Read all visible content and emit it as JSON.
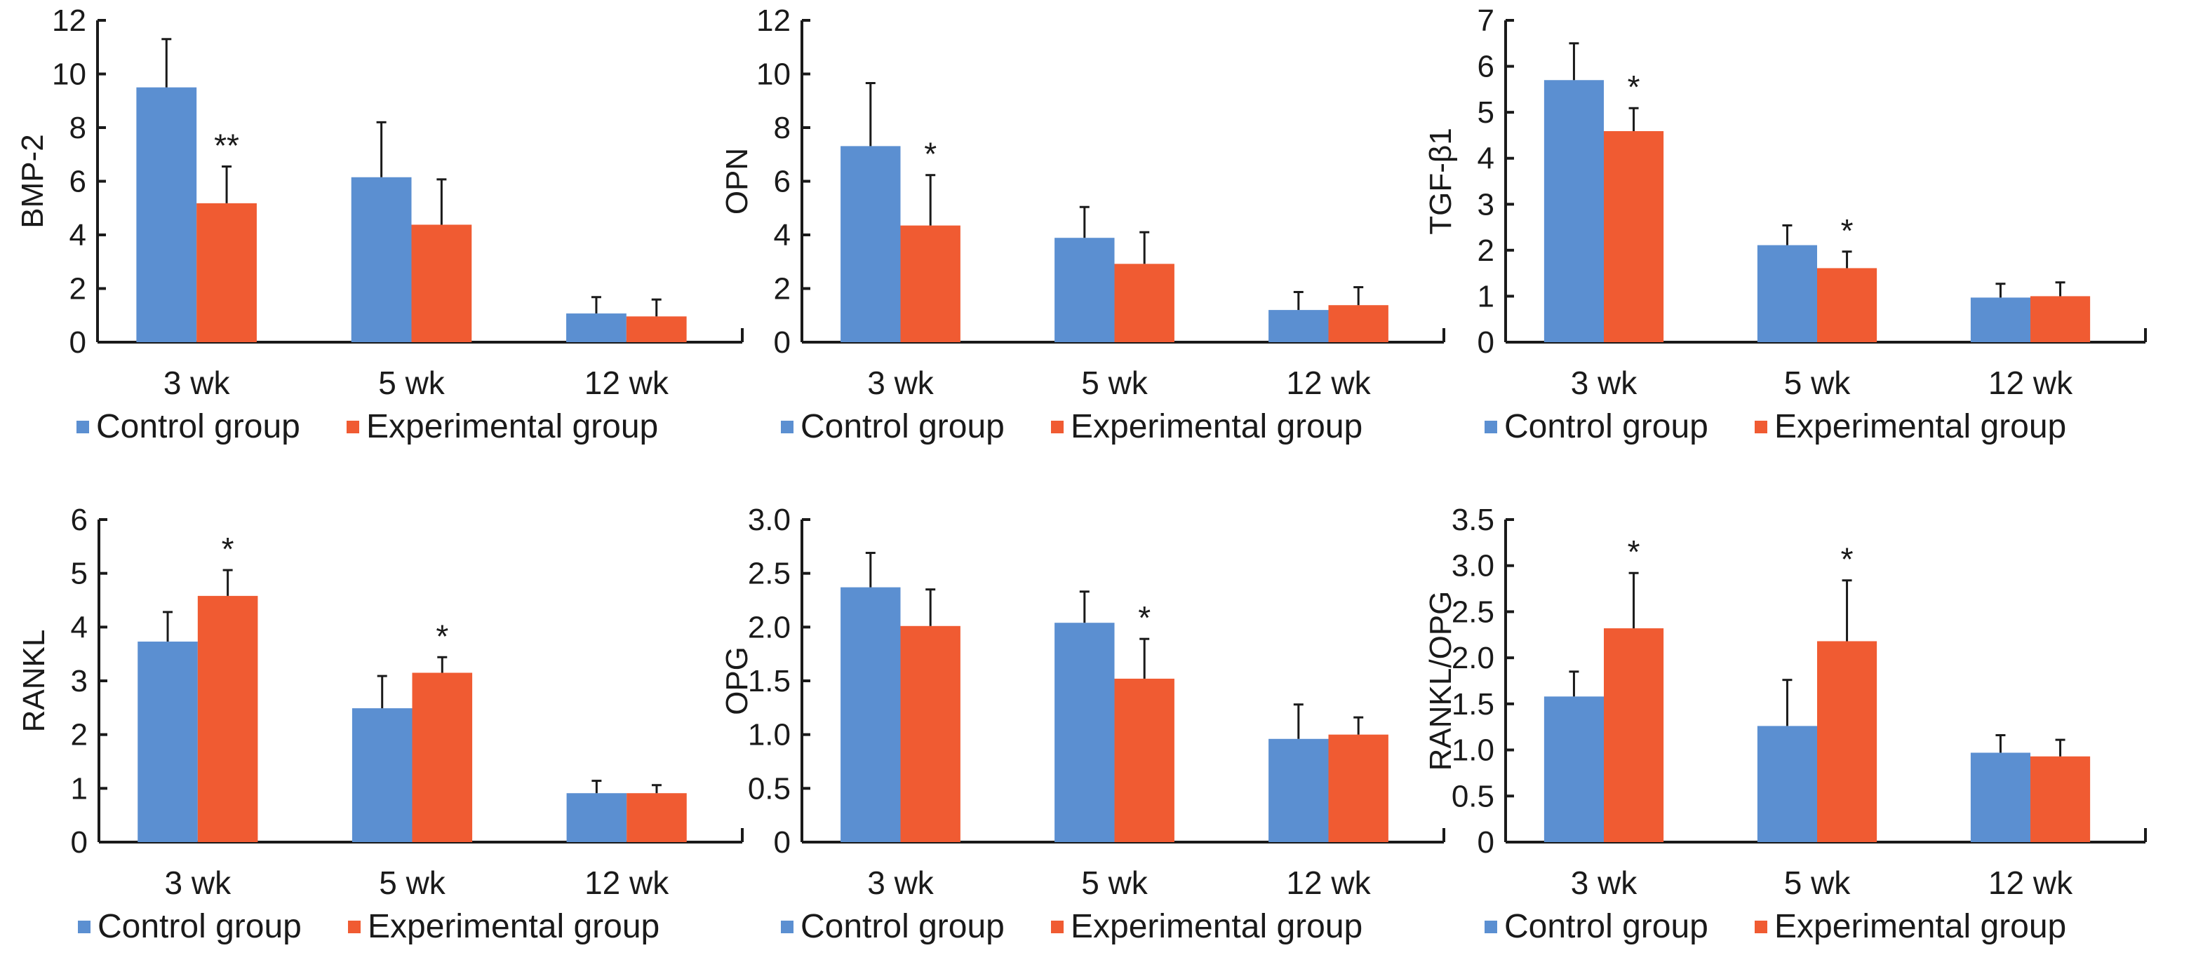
{
  "colors": {
    "control": "#5B8FD1",
    "experimental": "#F05B32",
    "axis": "#1a1a1a"
  },
  "legend": {
    "control": "Control group",
    "experimental": "Experimental group"
  },
  "chart_data": [
    {
      "type": "bar",
      "title": "",
      "xlabel": "",
      "ylabel": "BMP-2",
      "categories": [
        "3 wk",
        "5 wk",
        "12 wk"
      ],
      "ylim": [
        0,
        12
      ],
      "yticks": [
        0,
        2,
        4,
        6,
        8,
        10,
        12
      ],
      "ytick_labels": [
        "0",
        "2",
        "4",
        "6",
        "8",
        "10",
        "12"
      ],
      "legend_position": "bottom",
      "grid": false,
      "series": [
        {
          "name": "Control group",
          "values": [
            9.5,
            6.15,
            1.07
          ],
          "errors_upper": [
            11.3,
            8.2,
            1.68
          ]
        },
        {
          "name": "Experimental group",
          "values": [
            5.18,
            4.38,
            0.96
          ],
          "errors_upper": [
            6.55,
            6.07,
            1.59
          ]
        }
      ],
      "annotations": [
        {
          "category": "3 wk",
          "series": "Experimental group",
          "text": "**"
        }
      ]
    },
    {
      "type": "bar",
      "title": "",
      "xlabel": "",
      "ylabel": "OPN",
      "categories": [
        "3 wk",
        "5 wk",
        "12 wk"
      ],
      "ylim": [
        0,
        12
      ],
      "yticks": [
        0,
        2,
        4,
        6,
        8,
        10,
        12
      ],
      "ytick_labels": [
        "0",
        "2",
        "4",
        "6",
        "8",
        "10",
        "12"
      ],
      "legend_position": "bottom",
      "grid": false,
      "series": [
        {
          "name": "Control group",
          "values": [
            7.31,
            3.89,
            1.2
          ],
          "errors_upper": [
            9.66,
            5.04,
            1.87
          ]
        },
        {
          "name": "Experimental group",
          "values": [
            4.35,
            2.92,
            1.38
          ],
          "errors_upper": [
            6.23,
            4.1,
            2.05
          ]
        }
      ],
      "annotations": [
        {
          "category": "3 wk",
          "series": "Experimental group",
          "text": "*"
        }
      ]
    },
    {
      "type": "bar",
      "title": "",
      "xlabel": "",
      "ylabel": "TGF-β1",
      "categories": [
        "3 wk",
        "5 wk",
        "12 wk"
      ],
      "ylim": [
        0,
        7
      ],
      "yticks": [
        0,
        1,
        2,
        3,
        4,
        5,
        6,
        7
      ],
      "ytick_labels": [
        "0",
        "1",
        "2",
        "3",
        "4",
        "5",
        "6",
        "7"
      ],
      "legend_position": "bottom",
      "grid": false,
      "series": [
        {
          "name": "Control group",
          "values": [
            5.7,
            2.11,
            0.97
          ],
          "errors_upper": [
            6.5,
            2.54,
            1.27
          ]
        },
        {
          "name": "Experimental group",
          "values": [
            4.59,
            1.61,
            1.0
          ],
          "errors_upper": [
            5.09,
            1.97,
            1.3
          ]
        }
      ],
      "annotations": [
        {
          "category": "3 wk",
          "series": "Experimental group",
          "text": "*"
        },
        {
          "category": "5 wk",
          "series": "Experimental group",
          "text": "*"
        }
      ]
    },
    {
      "type": "bar",
      "title": "",
      "xlabel": "",
      "ylabel": "RANKL",
      "categories": [
        "3 wk",
        "5 wk",
        "12 wk"
      ],
      "ylim": [
        0,
        6
      ],
      "yticks": [
        0,
        1,
        2,
        3,
        4,
        5,
        6
      ],
      "ytick_labels": [
        "0",
        "1",
        "2",
        "3",
        "4",
        "5",
        "6"
      ],
      "legend_position": "bottom",
      "grid": false,
      "series": [
        {
          "name": "Control group",
          "values": [
            3.73,
            2.49,
            0.91
          ],
          "errors_upper": [
            4.28,
            3.09,
            1.14
          ]
        },
        {
          "name": "Experimental group",
          "values": [
            4.58,
            3.15,
            0.91
          ],
          "errors_upper": [
            5.06,
            3.44,
            1.06
          ]
        }
      ],
      "annotations": [
        {
          "category": "3 wk",
          "series": "Experimental group",
          "text": "*"
        },
        {
          "category": "5 wk",
          "series": "Experimental group",
          "text": "*"
        }
      ]
    },
    {
      "type": "bar",
      "title": "",
      "xlabel": "",
      "ylabel": "OPG",
      "categories": [
        "3 wk",
        "5 wk",
        "12 wk"
      ],
      "ylim": [
        0,
        3.0
      ],
      "yticks": [
        0,
        0.5,
        1.0,
        1.5,
        2.0,
        2.5,
        3.0
      ],
      "ytick_labels": [
        "0",
        "0.5",
        "1.0",
        "1.5",
        "2.0",
        "2.5",
        "3.0"
      ],
      "legend_position": "bottom",
      "grid": false,
      "series": [
        {
          "name": "Control group",
          "values": [
            2.37,
            2.04,
            0.96
          ],
          "errors_upper": [
            2.69,
            2.33,
            1.28
          ]
        },
        {
          "name": "Experimental group",
          "values": [
            2.01,
            1.52,
            1.0
          ],
          "errors_upper": [
            2.35,
            1.89,
            1.16
          ]
        }
      ],
      "annotations": [
        {
          "category": "5 wk",
          "series": "Experimental group",
          "text": "*"
        }
      ]
    },
    {
      "type": "bar",
      "title": "",
      "xlabel": "",
      "ylabel": "RANKL/OPG",
      "categories": [
        "3 wk",
        "5 wk",
        "12 wk"
      ],
      "ylim": [
        0,
        3.5
      ],
      "yticks": [
        0,
        0.5,
        1.0,
        1.5,
        2.0,
        2.5,
        3.0,
        3.5
      ],
      "ytick_labels": [
        "0",
        "0.5",
        "1.0",
        "1.5",
        "2.0",
        "2.5",
        "3.0",
        "3.5"
      ],
      "legend_position": "bottom",
      "grid": false,
      "series": [
        {
          "name": "Control group",
          "values": [
            1.58,
            1.26,
            0.97
          ],
          "errors_upper": [
            1.85,
            1.76,
            1.16
          ]
        },
        {
          "name": "Experimental group",
          "values": [
            2.32,
            2.18,
            0.93
          ],
          "errors_upper": [
            2.92,
            2.84,
            1.11
          ]
        }
      ],
      "annotations": [
        {
          "category": "3 wk",
          "series": "Experimental group",
          "text": "*"
        },
        {
          "category": "5 wk",
          "series": "Experimental group",
          "text": "*"
        }
      ]
    }
  ]
}
